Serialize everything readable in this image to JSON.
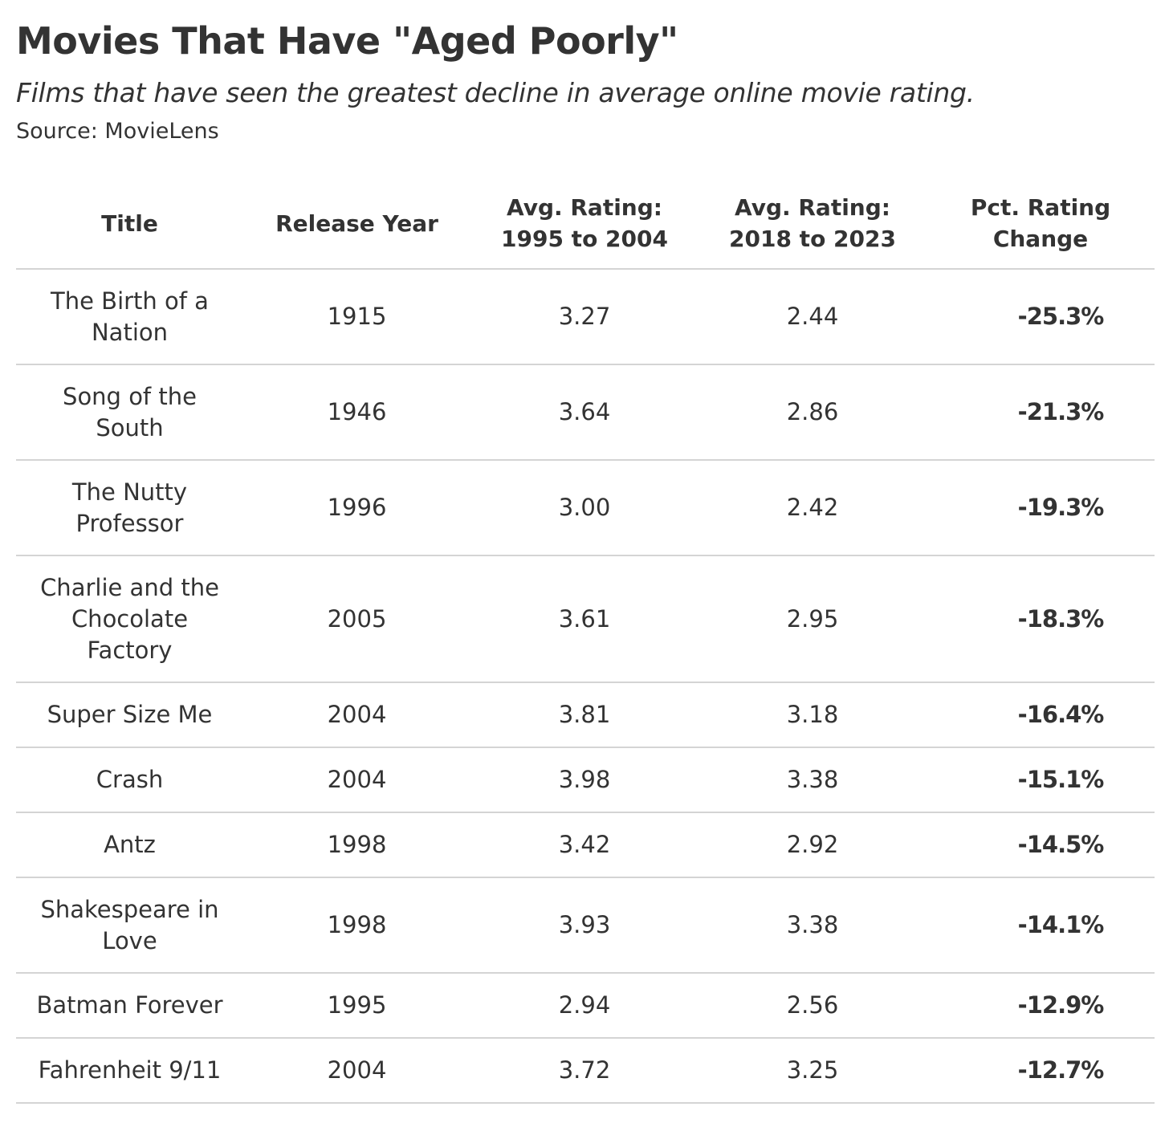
{
  "header": {
    "title": "Movies That Have \"Aged Poorly\"",
    "subtitle": "Films that have seen the greatest decline in average online movie rating.",
    "source": "Source: MovieLens"
  },
  "table": {
    "columns": [
      [
        "Title"
      ],
      [
        "Release Year"
      ],
      [
        "Avg. Rating:",
        "1995 to 2004"
      ],
      [
        "Avg. Rating:",
        "2018 to 2023"
      ],
      [
        "Pct. Rating",
        "Change"
      ]
    ],
    "rows": [
      {
        "title": [
          "The Birth of a",
          "Nation"
        ],
        "year": "1915",
        "r1": "3.27",
        "r2": "2.44",
        "pct": "-25.3%"
      },
      {
        "title": [
          "Song of the",
          "South"
        ],
        "year": "1946",
        "r1": "3.64",
        "r2": "2.86",
        "pct": "-21.3%"
      },
      {
        "title": [
          "The Nutty",
          "Professor"
        ],
        "year": "1996",
        "r1": "3.00",
        "r2": "2.42",
        "pct": "-19.3%"
      },
      {
        "title": [
          "Charlie and the",
          "Chocolate",
          "Factory"
        ],
        "year": "2005",
        "r1": "3.61",
        "r2": "2.95",
        "pct": "-18.3%"
      },
      {
        "title": [
          "Super Size Me"
        ],
        "year": "2004",
        "r1": "3.81",
        "r2": "3.18",
        "pct": "-16.4%"
      },
      {
        "title": [
          "Crash"
        ],
        "year": "2004",
        "r1": "3.98",
        "r2": "3.38",
        "pct": "-15.1%"
      },
      {
        "title": [
          "Antz"
        ],
        "year": "1998",
        "r1": "3.42",
        "r2": "2.92",
        "pct": "-14.5%"
      },
      {
        "title": [
          "Shakespeare in",
          "Love"
        ],
        "year": "1998",
        "r1": "3.93",
        "r2": "3.38",
        "pct": "-14.1%"
      },
      {
        "title": [
          "Batman Forever"
        ],
        "year": "1995",
        "r1": "2.94",
        "r2": "2.56",
        "pct": "-12.9%"
      },
      {
        "title": [
          "Fahrenheit 9/11"
        ],
        "year": "2004",
        "r1": "3.72",
        "r2": "3.25",
        "pct": "-12.7%"
      }
    ]
  },
  "chart_data": {
    "type": "table",
    "title": "Movies That Have \"Aged Poorly\"",
    "subtitle": "Films that have seen the greatest decline in average online movie rating.",
    "columns": [
      "Title",
      "Release Year",
      "Avg. Rating: 1995 to 2004",
      "Avg. Rating: 2018 to 2023",
      "Pct. Rating Change"
    ],
    "rows": [
      [
        "The Birth of a Nation",
        1915,
        3.27,
        2.44,
        -25.3
      ],
      [
        "Song of the South",
        1946,
        3.64,
        2.86,
        -21.3
      ],
      [
        "The Nutty Professor",
        1996,
        3.0,
        2.42,
        -19.3
      ],
      [
        "Charlie and the Chocolate Factory",
        2005,
        3.61,
        2.95,
        -18.3
      ],
      [
        "Super Size Me",
        2004,
        3.81,
        3.18,
        -16.4
      ],
      [
        "Crash",
        2004,
        3.98,
        3.38,
        -15.1
      ],
      [
        "Antz",
        1998,
        3.42,
        2.92,
        -14.5
      ],
      [
        "Shakespeare in Love",
        1998,
        3.93,
        3.38,
        -14.1
      ],
      [
        "Batman Forever",
        1995,
        2.94,
        2.56,
        -12.9
      ],
      [
        "Fahrenheit 9/11",
        2004,
        3.72,
        3.25,
        -12.7
      ]
    ]
  }
}
